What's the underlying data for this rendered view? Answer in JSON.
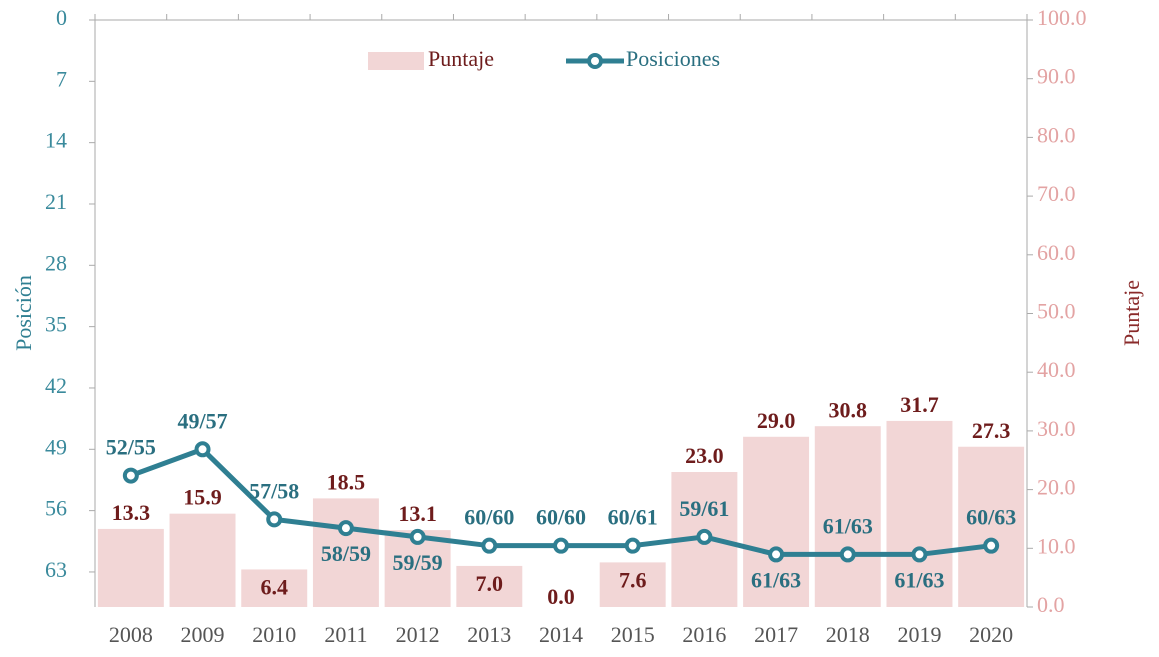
{
  "chart_data": {
    "type": "bar-line",
    "categories": [
      "2008",
      "2009",
      "2010",
      "2011",
      "2012",
      "2013",
      "2014",
      "2015",
      "2016",
      "2017",
      "2018",
      "2019",
      "2020"
    ],
    "series": [
      {
        "name": "Puntaje",
        "type": "bar",
        "axis": "y2",
        "color": "#f2d6d6",
        "values": [
          13.3,
          15.9,
          6.4,
          18.5,
          13.1,
          7.0,
          0.0,
          7.6,
          23.0,
          29.0,
          30.8,
          31.7,
          27.3
        ],
        "value_labels": [
          "13.3",
          "15.9",
          "6.4",
          "18.5",
          "13.1",
          "7.0",
          "0.0",
          "7.6",
          "23.0",
          "29.0",
          "30.8",
          "31.7",
          "27.3"
        ]
      },
      {
        "name": "Posiciones",
        "type": "line",
        "axis": "y",
        "color": "#2f7f92",
        "values": [
          52,
          49,
          57,
          58,
          59,
          60,
          60,
          60,
          59,
          61,
          61,
          61,
          60
        ],
        "value_labels": [
          "52/55",
          "49/57",
          "57/58",
          "58/59",
          "59/59",
          "60/60",
          "60/60",
          "60/61",
          "59/61",
          "61/63",
          "61/63",
          "61/63",
          "60/63"
        ]
      }
    ],
    "ylabel": "Posición",
    "y2label": "Puntaje",
    "ylim": [
      0,
      67
    ],
    "y_inverted": true,
    "yticks": [
      0,
      7,
      14,
      21,
      28,
      35,
      42,
      49,
      56,
      63
    ],
    "y2lim": [
      0,
      100
    ],
    "y2ticks": [
      {
        "value": 0,
        "label": "0.0"
      },
      {
        "value": 10,
        "label": "10.0"
      },
      {
        "value": 20,
        "label": "20.0"
      },
      {
        "value": 30,
        "label": "30.0"
      },
      {
        "value": 40,
        "label": "40.0"
      },
      {
        "value": 50,
        "label": "50.0"
      },
      {
        "value": 60,
        "label": "60.0"
      },
      {
        "value": 70,
        "label": "70.0"
      },
      {
        "value": 80,
        "label": "80.0"
      },
      {
        "value": 90,
        "label": "90.0"
      },
      {
        "value": 100,
        "label": "100.0"
      }
    ],
    "legend": "top"
  }
}
